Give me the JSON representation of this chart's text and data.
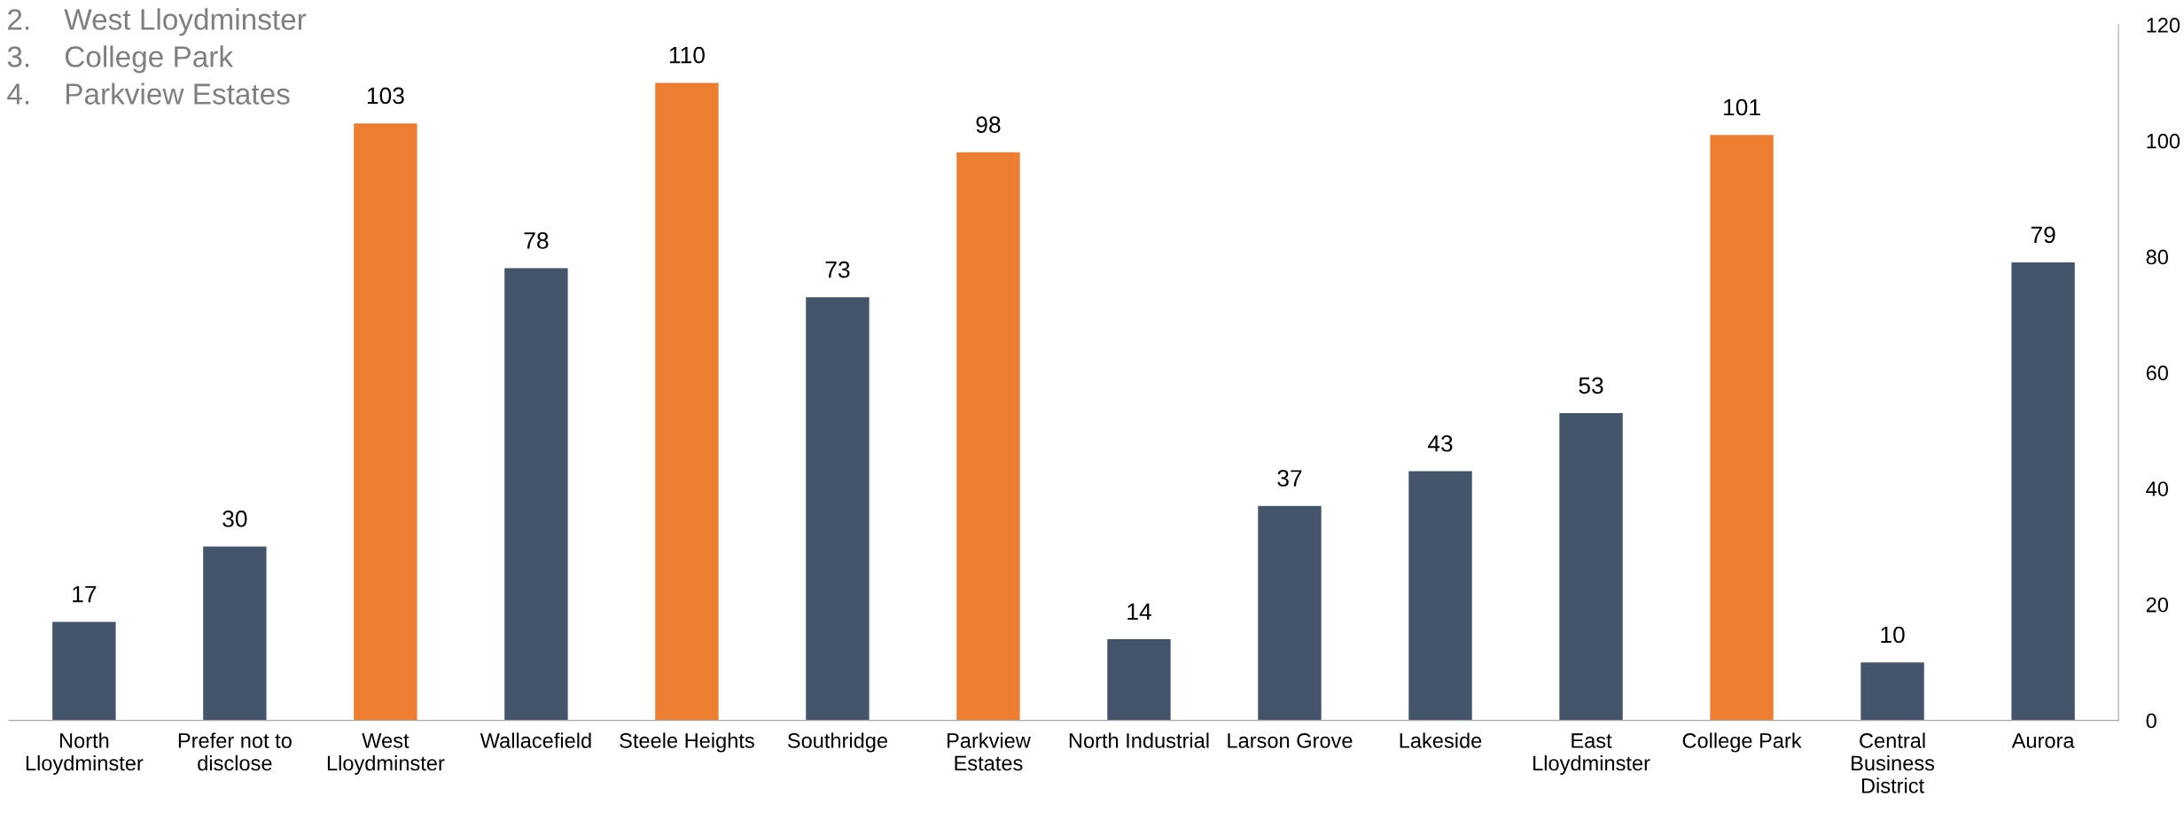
{
  "chart_data": {
    "type": "bar",
    "categories": [
      "North\nLloydminster",
      "Prefer not to\ndisclose",
      "West\nLloydminster",
      "Wallacefield",
      "Steele Heights",
      "Southridge",
      "Parkview\nEstates",
      "North Industrial",
      "Larson Grove",
      "Lakeside",
      "East\nLloydminster",
      "College Park",
      "Central\nBusiness\nDistrict",
      "Aurora"
    ],
    "values": [
      17,
      30,
      103,
      78,
      110,
      73,
      98,
      14,
      37,
      43,
      53,
      101,
      10,
      79
    ],
    "colors": [
      "#44546a",
      "#44546a",
      "#ed7d31",
      "#44546a",
      "#ed7d31",
      "#44546a",
      "#ed7d31",
      "#44546a",
      "#44546a",
      "#44546a",
      "#44546a",
      "#ed7d31",
      "#44546a",
      "#44546a"
    ],
    "data_labels": true,
    "ylim": [
      0,
      120
    ],
    "yticks": [
      0,
      20,
      40,
      60,
      80,
      100,
      120
    ],
    "grid": false,
    "legend": false,
    "annotations": [
      "2.    West Lloydminster",
      "3.    College Park",
      "4.    Parkview Estates"
    ]
  }
}
